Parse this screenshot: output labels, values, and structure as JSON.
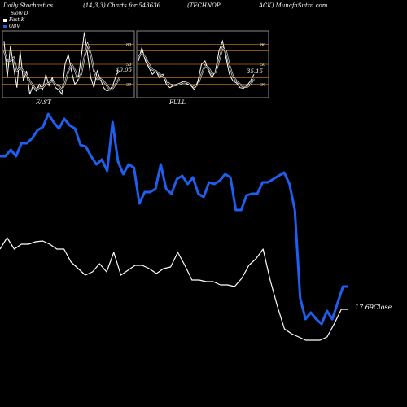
{
  "header": {
    "title": "Daily Stochastics",
    "params": "(14,3,3) Charts for 543636",
    "ticker": "(TECHNOP",
    "ticker2": "ACK) MunafaSutra.com"
  },
  "legend": [
    {
      "label": "Slow D",
      "color": "#000000"
    },
    {
      "label": "Fast K",
      "color": "#ffffff"
    },
    {
      "label": "OBV",
      "color": "#1e5ff0"
    }
  ],
  "colors": {
    "background": "#000000",
    "obv": "#1e5ff0",
    "price": "#ffffff",
    "band": "#b07010",
    "panel_border": "#888888"
  },
  "chart_data": [
    {
      "type": "line",
      "title": "FAST",
      "value_label": "40.05",
      "yticks": [
        20,
        30,
        50,
        70,
        80
      ],
      "ylim": [
        0,
        100
      ],
      "series": [
        {
          "name": "Fast K",
          "values": [
            85,
            30,
            78,
            45,
            15,
            70,
            25,
            40,
            5,
            18,
            10,
            20,
            12,
            35,
            18,
            30,
            15,
            12,
            5,
            50,
            65,
            40,
            20,
            25,
            60,
            98,
            65,
            30,
            15,
            40,
            28,
            15,
            10,
            12,
            20,
            35,
            40
          ]
        },
        {
          "name": "Slow D",
          "values": [
            70,
            55,
            55,
            60,
            40,
            45,
            40,
            35,
            25,
            18,
            12,
            15,
            15,
            20,
            22,
            25,
            20,
            18,
            12,
            22,
            40,
            50,
            42,
            28,
            35,
            60,
            80,
            65,
            40,
            28,
            28,
            25,
            18,
            12,
            15,
            22,
            30
          ]
        }
      ]
    },
    {
      "type": "line",
      "title": "FULL",
      "value_label": "35.15",
      "yticks": [
        20,
        30,
        50,
        70,
        80
      ],
      "ylim": [
        0,
        100
      ],
      "series": [
        {
          "name": "Full K",
          "values": [
            55,
            75,
            55,
            45,
            35,
            40,
            30,
            35,
            20,
            15,
            18,
            20,
            22,
            25,
            20,
            18,
            12,
            25,
            50,
            55,
            40,
            30,
            40,
            70,
            85,
            60,
            35,
            25,
            22,
            15,
            14,
            18,
            25,
            35
          ]
        },
        {
          "name": "Full D",
          "values": [
            60,
            68,
            60,
            50,
            42,
            40,
            35,
            33,
            25,
            20,
            18,
            19,
            21,
            23,
            22,
            19,
            16,
            20,
            35,
            48,
            45,
            36,
            38,
            55,
            75,
            70,
            48,
            32,
            25,
            20,
            16,
            16,
            20,
            28
          ]
        }
      ]
    },
    {
      "type": "line",
      "title": "",
      "close_label": "17.69Close",
      "series": [
        {
          "name": "OBV",
          "values": [
            192,
            192,
            184,
            192,
            176,
            176,
            170,
            160,
            156,
            140,
            150,
            158,
            146,
            154,
            158,
            178,
            180,
            192,
            202,
            196,
            210,
            150,
            198,
            214,
            202,
            206,
            250,
            236,
            236,
            232,
            202,
            232,
            238,
            220,
            216,
            226,
            218,
            238,
            242,
            224,
            226,
            222,
            214,
            218,
            258,
            258,
            240,
            238,
            238,
            224,
            224,
            220,
            216,
            212,
            226,
            258,
            366,
            392,
            384,
            392,
            398,
            382,
            392,
            372,
            352,
            352
          ]
        },
        {
          "name": "Close",
          "values": [
            306,
            292,
            306,
            300,
            300,
            297,
            296,
            300,
            306,
            306,
            322,
            330,
            338,
            334,
            324,
            334,
            310,
            338,
            332,
            326,
            326,
            330,
            336,
            330,
            328,
            310,
            326,
            344,
            344,
            346,
            346,
            350,
            350,
            352,
            342,
            326,
            318,
            306,
            344,
            376,
            404,
            410,
            414,
            418,
            418,
            418,
            414,
            398,
            380,
            380
          ]
        }
      ]
    }
  ]
}
